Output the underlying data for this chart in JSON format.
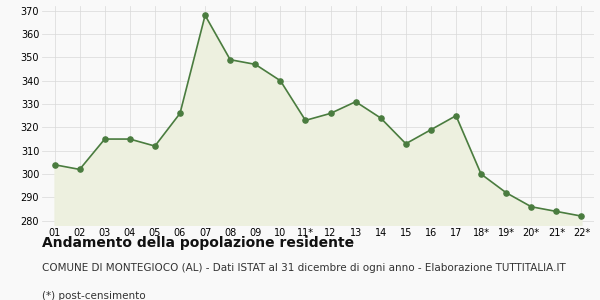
{
  "x_labels": [
    "01",
    "02",
    "03",
    "04",
    "05",
    "06",
    "07",
    "08",
    "09",
    "10",
    "11*",
    "12",
    "13",
    "14",
    "15",
    "16",
    "17",
    "18*",
    "19*",
    "20*",
    "21*",
    "22*"
  ],
  "values": [
    304,
    302,
    315,
    315,
    312,
    326,
    368,
    349,
    347,
    340,
    323,
    326,
    331,
    324,
    313,
    319,
    325,
    300,
    292,
    286,
    284,
    282
  ],
  "line_color": "#4a7c3f",
  "fill_color": "#edf0df",
  "marker_color": "#4a7c3f",
  "background_color": "#f9f9f9",
  "grid_color": "#d8d8d8",
  "ylim": [
    278,
    372
  ],
  "yticks": [
    280,
    290,
    300,
    310,
    320,
    330,
    340,
    350,
    360,
    370
  ],
  "title": "Andamento della popolazione residente",
  "title_fontsize": 10,
  "subtitle": "COMUNE DI MONTEGIOCO (AL) - Dati ISTAT al 31 dicembre di ogni anno - Elaborazione TUTTITALIA.IT",
  "footnote": "(*) post-censimento",
  "subtitle_fontsize": 7.5,
  "footnote_fontsize": 7.5
}
